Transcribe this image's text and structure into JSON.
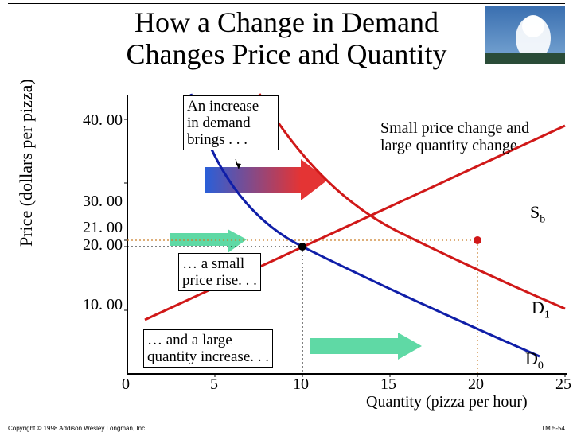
{
  "title": "How a Change in Demand\nChanges Price and Quantity",
  "ylabel": "Price (dollars per pizza)",
  "xlabel": "Quantity (pizza per hour)",
  "footer_left": "Copyright © 1998 Addison Wesley Longman, Inc.",
  "footer_right": "TM 5-54",
  "box_top": "An increase\nin demand\nbrings . . .",
  "note_right": "Small price change and\nlarge quantity change",
  "box_mid": "… a small\nprice rise. . .",
  "box_bot": "… and a large\nquantity increase. . .",
  "label_sb": "S",
  "label_sb_sub": "b",
  "label_d1": "D",
  "label_d1_sub": "1",
  "label_d0": "D",
  "label_d0_sub": "0",
  "yticks": {
    "40": "40. 00",
    "30": "30. 00",
    "21": "21. 00",
    "20": "20. 00",
    "10": "10. 00"
  },
  "xticks": {
    "0": "0",
    "5": "5",
    "10": "10",
    "15": "15",
    "20": "20",
    "25": "25"
  },
  "colors": {
    "axis": "#000000",
    "d0": "#0f1ea8",
    "d1": "#d01818",
    "supply": "#d01818",
    "guide": "#c97f2b",
    "green": "#5fd9a5",
    "grad_start": "#2a5fd8",
    "grad_end": "#e43434"
  }
}
